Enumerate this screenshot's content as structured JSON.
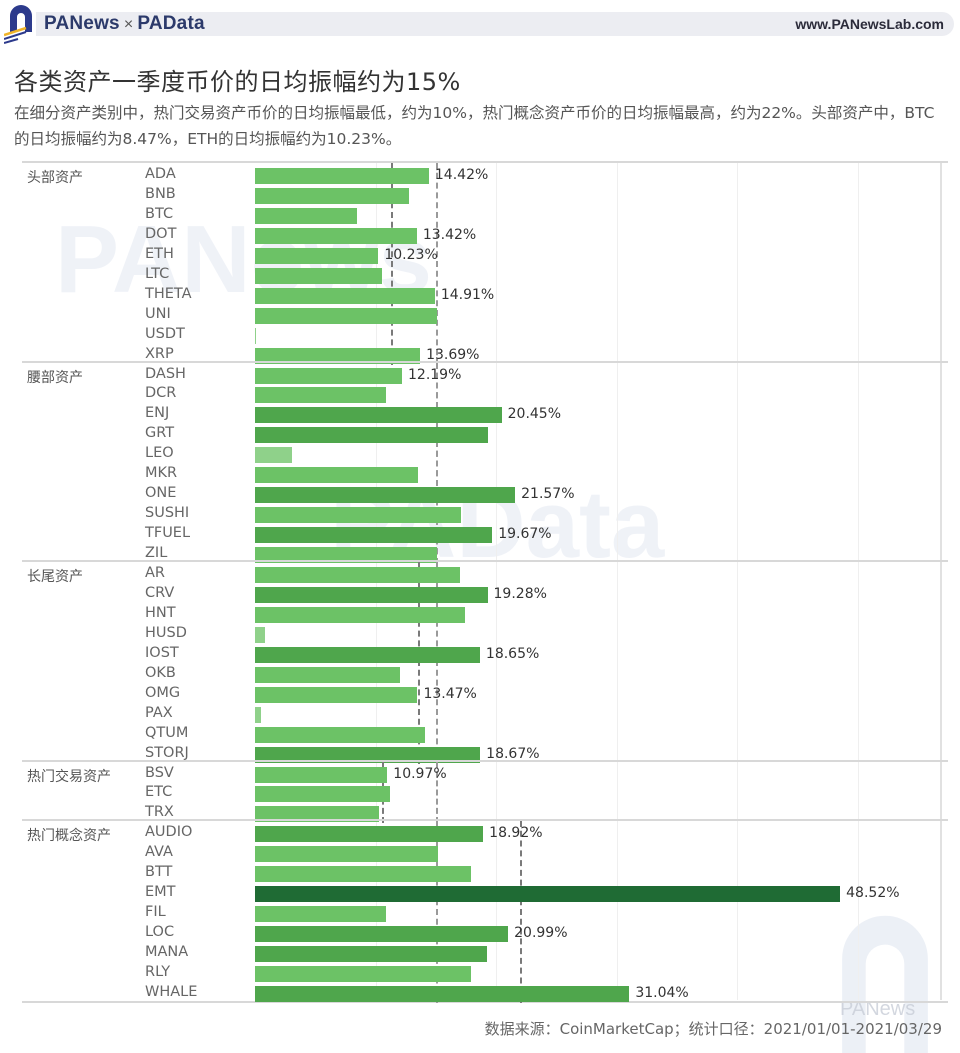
{
  "header": {
    "brand_left": "PANews",
    "brand_sep": "×",
    "brand_right": "PAData",
    "site_url": "www.PANewsLab.com"
  },
  "title": "各类资产一季度币价的日均振幅约为15%",
  "subtitle": "在细分资产类别中，热门交易资产币价的日均振幅最低，约为10%，热门概念资产币价的日均振幅最高，约为22%。头部资产中，BTC的日均振幅约为8.47%，ETH的日均振幅约为10.23%。",
  "footer": "数据来源：CoinMarketCap；统计口径：2021/01/01-2021/03/29",
  "watermarks": {
    "top": "PANews",
    "middle": "PAData",
    "corner": "PANews"
  },
  "colors": {
    "bar_light": "#8fd18a",
    "bar_mid": "#6cc266",
    "bar_dark": "#4fa64c",
    "bar_darkest": "#1f6b34",
    "avg_line": "#888888"
  },
  "chart_data": {
    "type": "bar",
    "orientation": "horizontal",
    "title": "各类资产一季度币价的日均振幅约为15%",
    "xlabel": "",
    "ylabel": "",
    "xlim": [
      0,
      57
    ],
    "grid": true,
    "gridlines_at": [
      10,
      20,
      30,
      40,
      50
    ],
    "reference_lines": [
      {
        "label": "overall_average",
        "value": 15.0
      },
      {
        "label": "头部资产 average",
        "value": 11.3
      },
      {
        "label": "长尾资产 average",
        "value": 13.5
      },
      {
        "label": "热门交易资产 average",
        "value": 10.5
      },
      {
        "label": "热门概念资产 average",
        "value": 22.0
      }
    ],
    "groups": [
      {
        "name": "头部资产",
        "avg": 11.3,
        "items": [
          {
            "label": "ADA",
            "value": 14.42,
            "shown": "14.42%"
          },
          {
            "label": "BNB",
            "value": 12.8,
            "shown": ""
          },
          {
            "label": "BTC",
            "value": 8.47,
            "shown": ""
          },
          {
            "label": "DOT",
            "value": 13.42,
            "shown": "13.42%"
          },
          {
            "label": "ETH",
            "value": 10.23,
            "shown": "10.23%"
          },
          {
            "label": "LTC",
            "value": 10.5,
            "shown": ""
          },
          {
            "label": "THETA",
            "value": 14.91,
            "shown": "14.91%"
          },
          {
            "label": "UNI",
            "value": 15.1,
            "shown": ""
          },
          {
            "label": "USDT",
            "value": 0.1,
            "shown": ""
          },
          {
            "label": "XRP",
            "value": 13.69,
            "shown": "13.69%"
          }
        ]
      },
      {
        "name": "腰部资产",
        "avg": 15.0,
        "items": [
          {
            "label": "DASH",
            "value": 12.19,
            "shown": "12.19%"
          },
          {
            "label": "DCR",
            "value": 10.9,
            "shown": ""
          },
          {
            "label": "ENJ",
            "value": 20.45,
            "shown": "20.45%"
          },
          {
            "label": "GRT",
            "value": 19.3,
            "shown": ""
          },
          {
            "label": "LEO",
            "value": 3.1,
            "shown": ""
          },
          {
            "label": "MKR",
            "value": 13.5,
            "shown": ""
          },
          {
            "label": "ONE",
            "value": 21.57,
            "shown": "21.57%"
          },
          {
            "label": "SUSHI",
            "value": 17.1,
            "shown": ""
          },
          {
            "label": "TFUEL",
            "value": 19.67,
            "shown": "19.67%"
          },
          {
            "label": "ZIL",
            "value": 15.1,
            "shown": ""
          }
        ]
      },
      {
        "name": "长尾资产",
        "avg": 13.5,
        "items": [
          {
            "label": "AR",
            "value": 17.0,
            "shown": ""
          },
          {
            "label": "CRV",
            "value": 19.28,
            "shown": "19.28%"
          },
          {
            "label": "HNT",
            "value": 17.4,
            "shown": ""
          },
          {
            "label": "HUSD",
            "value": 0.8,
            "shown": ""
          },
          {
            "label": "IOST",
            "value": 18.65,
            "shown": "18.65%"
          },
          {
            "label": "OKB",
            "value": 12.0,
            "shown": ""
          },
          {
            "label": "OMG",
            "value": 13.47,
            "shown": "13.47%"
          },
          {
            "label": "PAX",
            "value": 0.5,
            "shown": ""
          },
          {
            "label": "QTUM",
            "value": 14.1,
            "shown": ""
          },
          {
            "label": "STORJ",
            "value": 18.67,
            "shown": "18.67%"
          }
        ]
      },
      {
        "name": "热门交易资产",
        "avg": 10.5,
        "items": [
          {
            "label": "BSV",
            "value": 10.97,
            "shown": "10.97%"
          },
          {
            "label": "ETC",
            "value": 11.2,
            "shown": ""
          },
          {
            "label": "TRX",
            "value": 10.3,
            "shown": ""
          }
        ]
      },
      {
        "name": "热门概念资产",
        "avg": 22.0,
        "items": [
          {
            "label": "AUDIO",
            "value": 18.92,
            "shown": "18.92%"
          },
          {
            "label": "AVA",
            "value": 15.2,
            "shown": ""
          },
          {
            "label": "BTT",
            "value": 17.9,
            "shown": ""
          },
          {
            "label": "EMT",
            "value": 48.52,
            "shown": "48.52%"
          },
          {
            "label": "FIL",
            "value": 10.9,
            "shown": ""
          },
          {
            "label": "LOC",
            "value": 20.99,
            "shown": "20.99%"
          },
          {
            "label": "MANA",
            "value": 19.2,
            "shown": ""
          },
          {
            "label": "RLY",
            "value": 17.9,
            "shown": ""
          },
          {
            "label": "WHALE",
            "value": 31.04,
            "shown": "31.04%"
          }
        ]
      }
    ]
  }
}
